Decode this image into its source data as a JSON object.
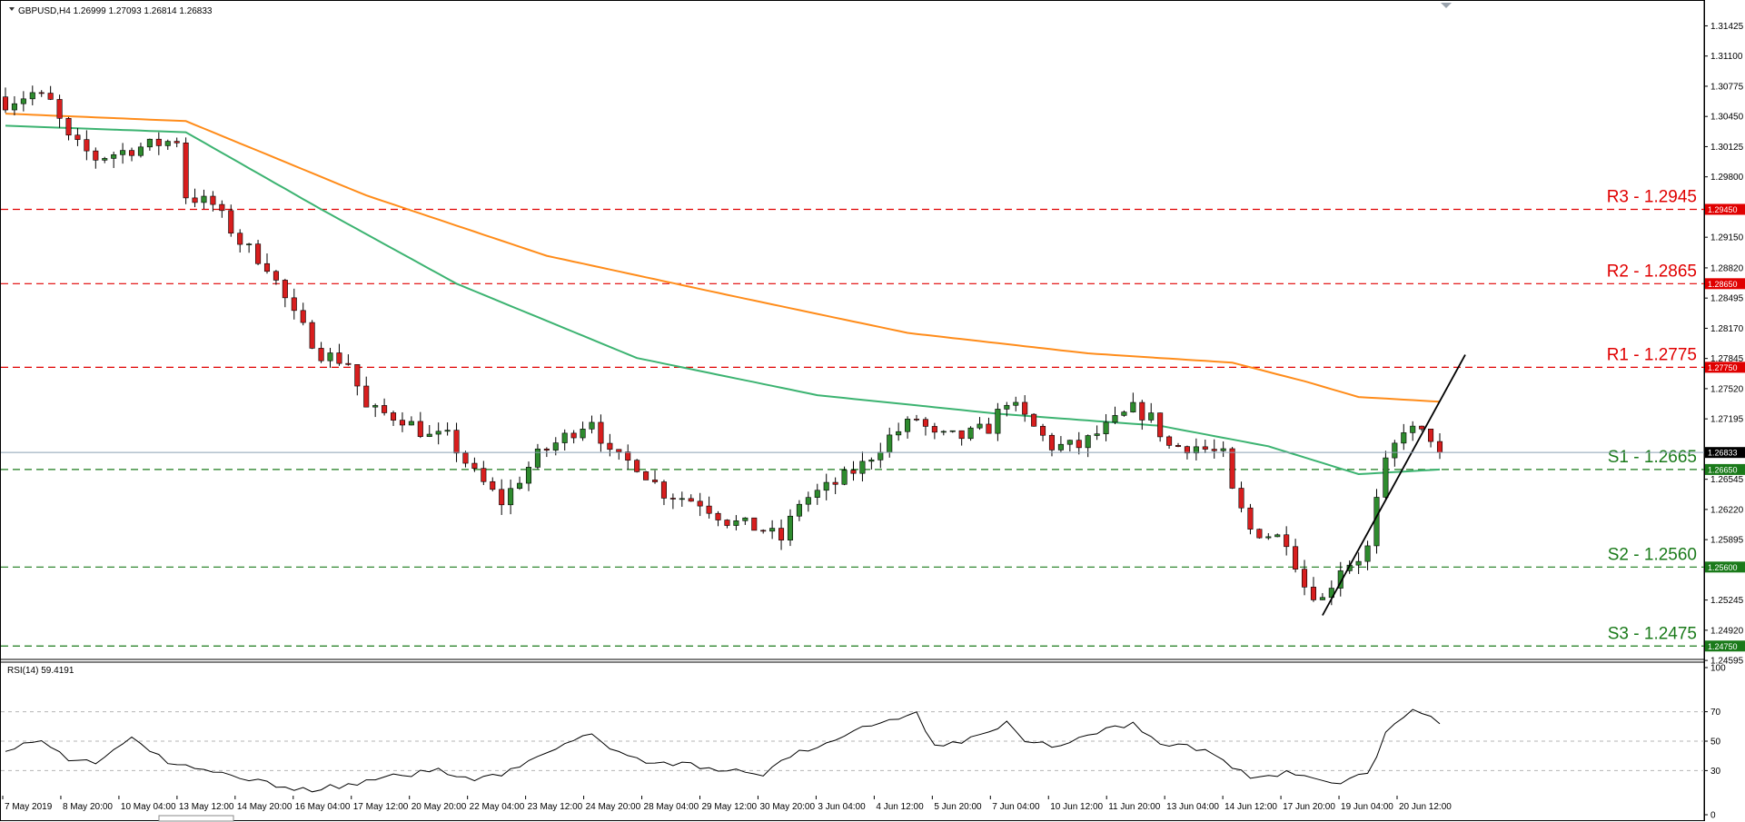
{
  "chart_data": {
    "type": "candlestick",
    "symbol_header": "GBPUSD,H4  1.26999 1.27093 1.26814 1.26833",
    "rsi_header": "RSI(14) 59.4191",
    "current_price": 1.26833,
    "current_price_label": "1.26833",
    "y_range": [
      1.24645,
      1.31625
    ],
    "y_ticks": [
      "1.31425",
      "1.31100",
      "1.30775",
      "1.30450",
      "1.30125",
      "1.29800",
      "1.29450",
      "1.29150",
      "1.28820",
      "1.28495",
      "1.28170",
      "1.27845",
      "1.27750",
      "1.27520",
      "1.27195",
      "1.26833",
      "1.26650",
      "1.26545",
      "1.26220",
      "1.25895",
      "1.25600",
      "1.25245",
      "1.24920",
      "1.24750",
      "1.24595"
    ],
    "levels": [
      {
        "name": "R3",
        "label": "R3 - 1.2945",
        "value": 1.2945,
        "badge": "1.29450",
        "color": "#e00000"
      },
      {
        "name": "R2",
        "label": "R2 - 1.2865",
        "value": 1.2865,
        "badge": "1.28650",
        "color": "#e00000"
      },
      {
        "name": "R1",
        "label": "R1 - 1.2775",
        "value": 1.2775,
        "badge": "1.27750",
        "color": "#e00000"
      },
      {
        "name": "S1",
        "label": "S1 - 1.2665",
        "value": 1.2665,
        "badge": "1.26650",
        "color": "#1a7a1a"
      },
      {
        "name": "S2",
        "label": "S2 - 1.2560",
        "value": 1.256,
        "badge": "1.25600",
        "color": "#1a7a1a"
      },
      {
        "name": "S3",
        "label": "S3 - 1.2475",
        "value": 1.2475,
        "badge": "1.24750",
        "color": "#1a7a1a"
      }
    ],
    "x_labels": [
      "7 May 2019",
      "8 May 20:00",
      "10 May 04:00",
      "13 May 12:00",
      "14 May 20:00",
      "16 May 04:00",
      "17 May 12:00",
      "20 May 20:00",
      "22 May 04:00",
      "23 May 12:00",
      "24 May 20:00",
      "28 May 04:00",
      "29 May 12:00",
      "30 May 20:00",
      "3 Jun 04:00",
      "4 Jun 12:00",
      "5 Jun 20:00",
      "7 Jun 04:00",
      "10 Jun 12:00",
      "11 Jun 20:00",
      "13 Jun 04:00",
      "14 Jun 12:00",
      "17 Jun 20:00",
      "19 Jun 04:00",
      "20 Jun 12:00"
    ],
    "candle_count": 160,
    "close_keypoints": [
      [
        0,
        1.306
      ],
      [
        3,
        1.307
      ],
      [
        5,
        1.306
      ],
      [
        7,
        1.302
      ],
      [
        10,
        1.3
      ],
      [
        14,
        1.301
      ],
      [
        19,
        1.302
      ],
      [
        20,
        1.296
      ],
      [
        23,
        1.295
      ],
      [
        26,
        1.291
      ],
      [
        29,
        1.2885
      ],
      [
        32,
        1.283
      ],
      [
        35,
        1.279
      ],
      [
        38,
        1.278
      ],
      [
        40,
        1.273
      ],
      [
        44,
        1.272
      ],
      [
        47,
        1.27
      ],
      [
        49,
        1.27
      ],
      [
        52,
        1.266
      ],
      [
        55,
        1.263
      ],
      [
        59,
        1.268
      ],
      [
        62,
        1.27
      ],
      [
        65,
        1.272
      ],
      [
        67,
        1.268
      ],
      [
        70,
        1.267
      ],
      [
        73,
        1.264
      ],
      [
        77,
        1.263
      ],
      [
        80,
        1.261
      ],
      [
        84,
        1.26
      ],
      [
        86,
        1.259
      ],
      [
        88,
        1.263
      ],
      [
        92,
        1.265
      ],
      [
        95,
        1.267
      ],
      [
        98,
        1.27
      ],
      [
        101,
        1.272
      ],
      [
        103,
        1.27
      ],
      [
        106,
        1.27
      ],
      [
        109,
        1.271
      ],
      [
        111,
        1.274
      ],
      [
        113,
        1.272
      ],
      [
        116,
        1.269
      ],
      [
        119,
        1.269
      ],
      [
        122,
        1.271
      ],
      [
        125,
        1.273
      ],
      [
        127,
        1.272
      ],
      [
        129,
        1.269
      ],
      [
        132,
        1.269
      ],
      [
        135,
        1.268
      ],
      [
        136,
        1.264
      ],
      [
        138,
        1.26
      ],
      [
        142,
        1.259
      ],
      [
        144,
        1.254
      ],
      [
        146,
        1.2525
      ],
      [
        148,
        1.256
      ],
      [
        150,
        1.257
      ],
      [
        151,
        1.258
      ],
      [
        152,
        1.263
      ],
      [
        153,
        1.267
      ],
      [
        155,
        1.271
      ],
      [
        158,
        1.27
      ],
      [
        159,
        1.2683
      ]
    ],
    "ma_orange": [
      [
        0,
        1.3048
      ],
      [
        20,
        1.304
      ],
      [
        40,
        1.296
      ],
      [
        60,
        1.2895
      ],
      [
        80,
        1.2853
      ],
      [
        100,
        1.2812
      ],
      [
        120,
        1.279
      ],
      [
        136,
        1.278
      ],
      [
        144,
        1.276
      ],
      [
        150,
        1.2743
      ],
      [
        159,
        1.2738
      ]
    ],
    "ma_green": [
      [
        0,
        1.3035
      ],
      [
        20,
        1.3028
      ],
      [
        35,
        1.2945
      ],
      [
        50,
        1.2865
      ],
      [
        70,
        1.2785
      ],
      [
        90,
        1.2745
      ],
      [
        110,
        1.2725
      ],
      [
        128,
        1.2712
      ],
      [
        140,
        1.269
      ],
      [
        146,
        1.2672
      ],
      [
        150,
        1.266
      ],
      [
        159,
        1.2665
      ]
    ],
    "trendline": [
      [
        146,
        1.2508
      ],
      [
        159,
        1.2725
      ]
    ],
    "rsi_range": [
      0,
      100
    ],
    "rsi_ticks": [
      100,
      70,
      50,
      30,
      0
    ],
    "rsi_keypoints": [
      [
        0,
        45
      ],
      [
        4,
        50
      ],
      [
        7,
        38
      ],
      [
        10,
        36
      ],
      [
        14,
        52
      ],
      [
        18,
        35
      ],
      [
        22,
        30
      ],
      [
        26,
        26
      ],
      [
        30,
        20
      ],
      [
        34,
        17
      ],
      [
        40,
        22
      ],
      [
        44,
        27
      ],
      [
        48,
        30
      ],
      [
        52,
        25
      ],
      [
        55,
        28
      ],
      [
        59,
        38
      ],
      [
        62,
        50
      ],
      [
        65,
        53
      ],
      [
        68,
        42
      ],
      [
        72,
        35
      ],
      [
        76,
        34
      ],
      [
        80,
        30
      ],
      [
        84,
        28
      ],
      [
        88,
        42
      ],
      [
        92,
        50
      ],
      [
        95,
        60
      ],
      [
        98,
        65
      ],
      [
        101,
        68
      ],
      [
        103,
        48
      ],
      [
        106,
        50
      ],
      [
        109,
        58
      ],
      [
        111,
        62
      ],
      [
        113,
        50
      ],
      [
        116,
        47
      ],
      [
        119,
        52
      ],
      [
        122,
        58
      ],
      [
        125,
        62
      ],
      [
        127,
        52
      ],
      [
        129,
        48
      ],
      [
        132,
        45
      ],
      [
        135,
        38
      ],
      [
        136,
        32
      ],
      [
        138,
        26
      ],
      [
        142,
        28
      ],
      [
        144,
        25
      ],
      [
        146,
        22
      ],
      [
        148,
        23
      ],
      [
        150,
        26
      ],
      [
        151,
        30
      ],
      [
        152,
        40
      ],
      [
        153,
        55
      ],
      [
        155,
        66
      ],
      [
        156,
        70
      ],
      [
        158,
        65
      ],
      [
        159,
        60
      ]
    ]
  }
}
